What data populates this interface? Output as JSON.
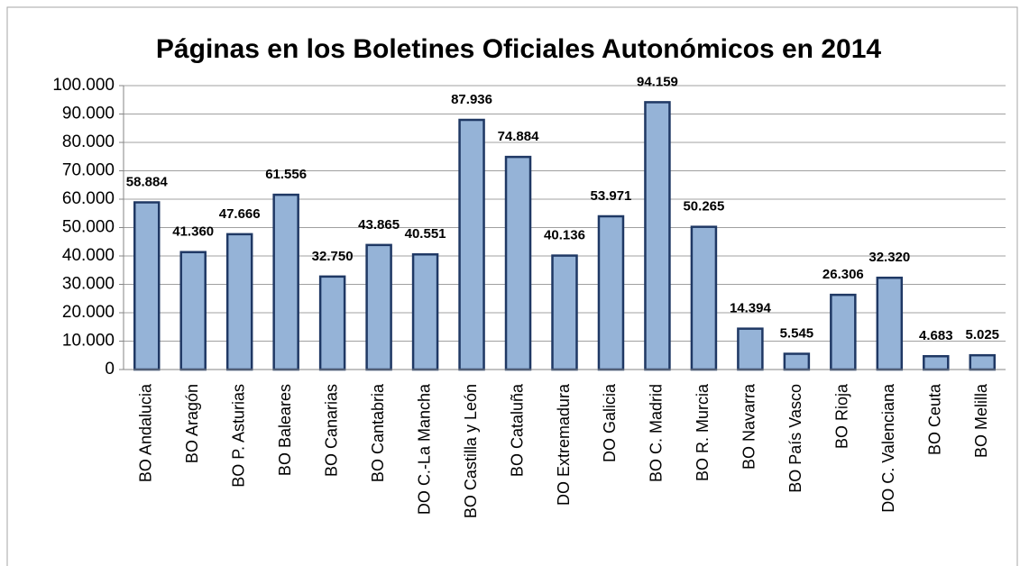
{
  "chart_data": {
    "type": "bar",
    "title": "Páginas en los Boletines Oficiales Autonómicos en 2014",
    "categories": [
      "BO Andalucia",
      "BO Aragón",
      "BO P. Asturias",
      "BO Baleares",
      "BO Canarias",
      "BO Cantabria",
      "DO C.-La Mancha",
      "BO Castilla y León",
      "BO Cataluña",
      "DO Extremadura",
      "DO Galicia",
      "BO C. Madrid",
      "BO R. Murcia",
      "BO Navarra",
      "BO País Vasco",
      "BO Rioja",
      "DO C. Valenciana",
      "BO Ceuta",
      "BO Melilla"
    ],
    "values": [
      58884,
      41360,
      47666,
      61556,
      32750,
      43865,
      40551,
      87936,
      74884,
      40136,
      53971,
      94159,
      50265,
      14394,
      5545,
      26306,
      32320,
      4683,
      5025
    ],
    "value_labels": [
      "58.884",
      "41.360",
      "47.666",
      "61.556",
      "32.750",
      "43.865",
      "40.551",
      "87.936",
      "74.884",
      "40.136",
      "53.971",
      "94.159",
      "50.265",
      "14.394",
      "5.545",
      "26.306",
      "32.320",
      "4.683",
      "5.025"
    ],
    "color": "#95b3d7",
    "ylim": [
      0,
      100000
    ],
    "yticks": [
      0,
      {
        "value": 10000,
        "label": "10.000"
      },
      {
        "value": 20000,
        "label": "20.000"
      },
      {
        "value": 30000,
        "label": "30.000"
      },
      {
        "value": 40000,
        "label": "40.000"
      },
      {
        "value": 50000,
        "label": "50.000"
      },
      {
        "value": 60000,
        "label": "60.000"
      },
      {
        "value": 70000,
        "label": "70.000"
      },
      {
        "value": 80000,
        "label": "80.000"
      },
      {
        "value": 90000,
        "label": "90.000"
      },
      {
        "value": 100000,
        "label": "100.000"
      }
    ],
    "grid": true
  }
}
